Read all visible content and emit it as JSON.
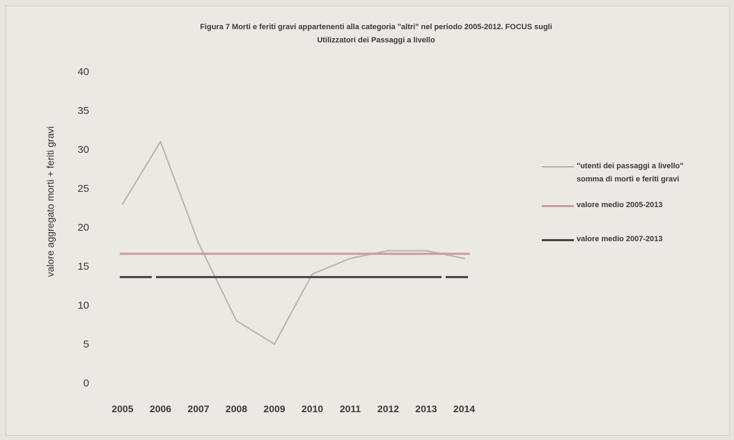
{
  "chart_data": {
    "type": "line",
    "title_lines": [
      "Figura 7 Morti e feriti gravi appartenenti alla categoria \"altri\"  nel periodo 2005-2012. FOCUS sugli",
      "Utilizzatori dei Passaggi a livello"
    ],
    "ylabel": "valore aggregato morti + feriti gravi",
    "xlabel": "",
    "categories": [
      "2005",
      "2006",
      "2007",
      "2008",
      "2009",
      "2010",
      "2011",
      "2012",
      "2013",
      "2014"
    ],
    "ylim": [
      0,
      40
    ],
    "yticks": [
      0,
      5,
      10,
      15,
      20,
      25,
      30,
      35,
      40
    ],
    "grid": false,
    "legend_position": "right",
    "series": [
      {
        "name": "\"utenti dei passaggi a livello\" somma di morti e feriti gravi",
        "legend_lines": [
          "\"utenti dei passaggi a livello\"",
          "somma di morti e feriti gravi"
        ],
        "color": "#b8b4b0",
        "style": "line",
        "values": [
          23,
          31,
          18,
          8,
          5,
          14,
          16,
          17,
          17,
          16
        ]
      },
      {
        "name": "valore medio 2005-2013",
        "legend_lines": [
          "valore medio 2005-2013"
        ],
        "color": "#c99ba4",
        "style": "constant",
        "values": [
          16.6,
          16.6,
          16.6,
          16.6,
          16.6,
          16.6,
          16.6,
          16.6,
          16.6,
          16.6
        ]
      },
      {
        "name": "valore medio 2007-2013",
        "legend_lines": [
          "valore medio 2007-2013"
        ],
        "color": "#444444",
        "style": "dashed-constant",
        "values": [
          13.6,
          13.6,
          13.6,
          13.6,
          13.6,
          13.6,
          13.6,
          13.6,
          13.6,
          13.6
        ]
      }
    ]
  }
}
